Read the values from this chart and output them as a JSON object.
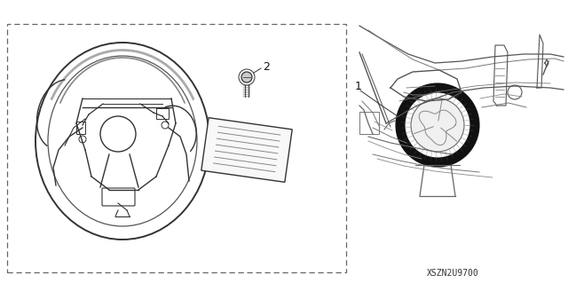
{
  "bg_color": "#ffffff",
  "line_color": "#333333",
  "light_line": "#555555",
  "label1": "1",
  "label2": "2",
  "part_number": "XSZN2U9700",
  "label_fontsize": 8,
  "pn_fontsize": 6
}
